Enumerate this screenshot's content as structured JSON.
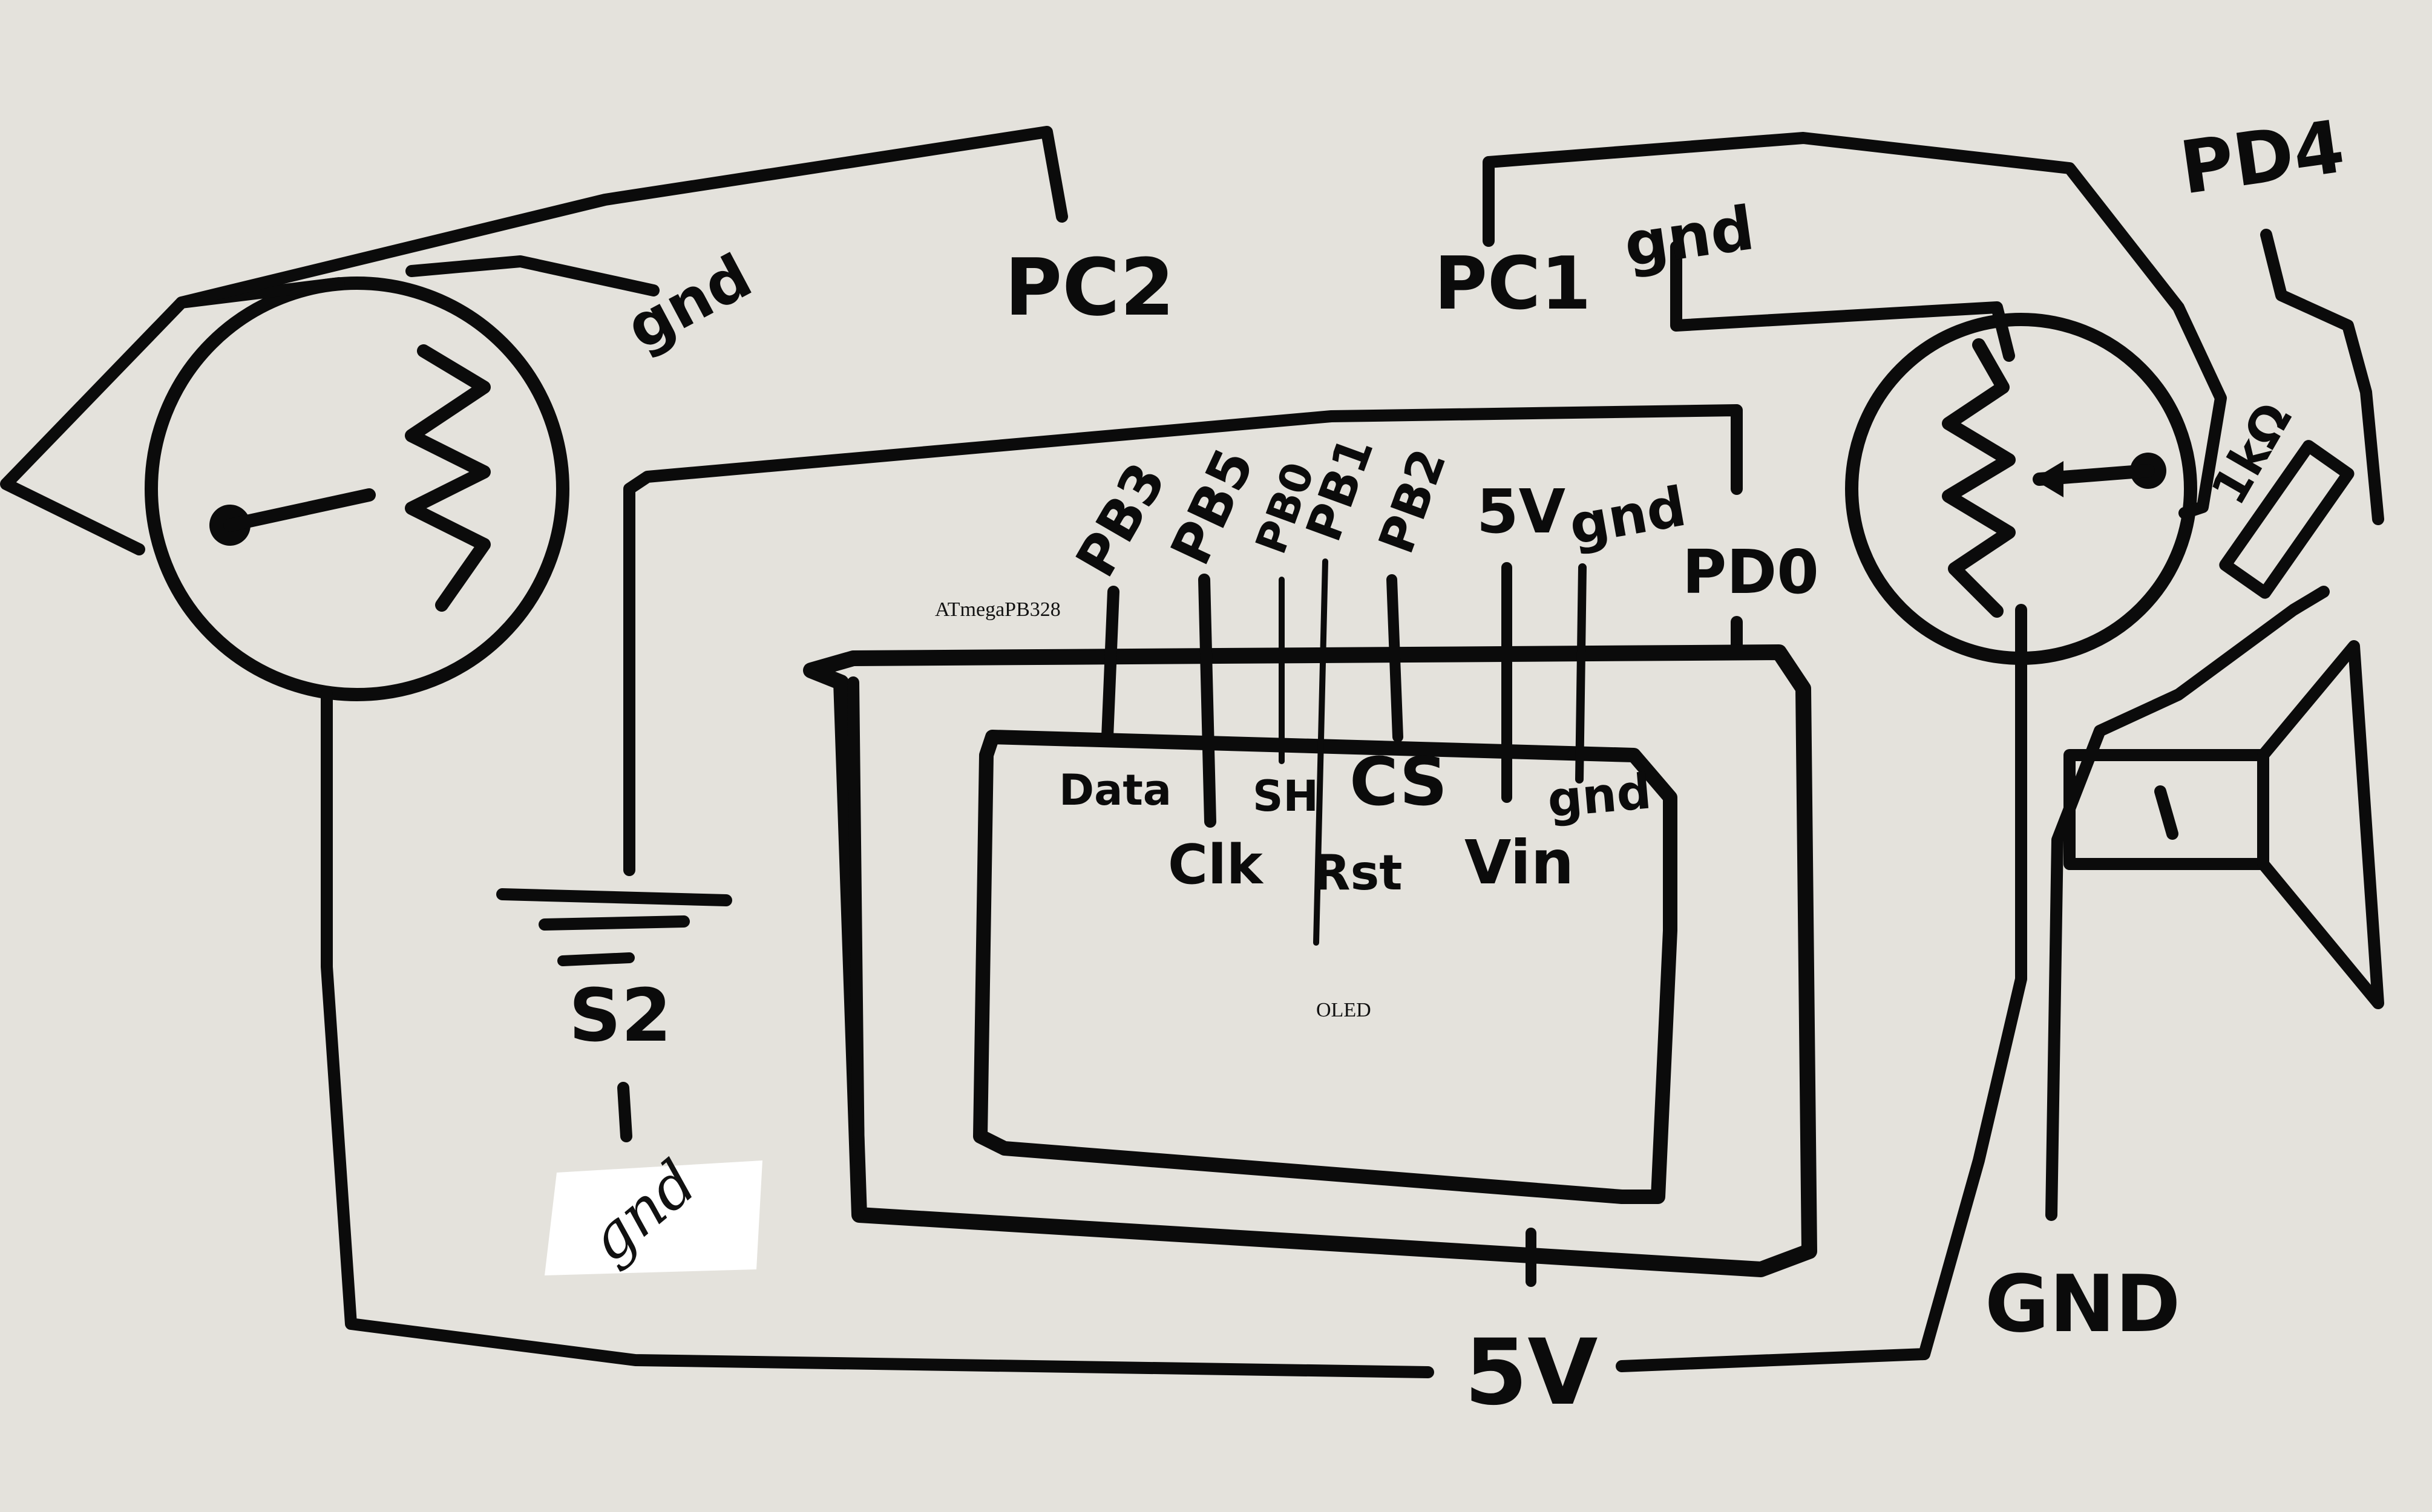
{
  "colors": {
    "board": "#e4e2dc",
    "ink": "#0b0b0b",
    "eraser_patch": "#ffffff"
  },
  "labels": {
    "gnd_left_pot": "gnd",
    "pc2": "PC2",
    "pc1": "PC1",
    "gnd_right_pot": "gnd",
    "pd4": "PD4",
    "resistor_value": "1kΩ",
    "pb3": "PB3",
    "pb5": "PB5",
    "pb0": "PB0",
    "pb1": "PB1",
    "pb2": "PB2",
    "mcu_5v": "5V",
    "mcu_gnd": "gnd",
    "pd0": "PD0",
    "mcu_name": "ATmegaPB328",
    "oled_data": "Data",
    "oled_clk": "Clk",
    "oled_sh": "SH",
    "oled_rst": "Rst",
    "oled_cs": "CS",
    "oled_vin": "Vin",
    "oled_gnd": "gnd",
    "oled_name": "OLED",
    "switch_label": "S2",
    "switch_gnd": "gnd",
    "rail_5v": "5V",
    "rail_gnd": "GND"
  },
  "icons": {
    "left_pot": "potentiometer-icon",
    "right_pot": "potentiometer-icon",
    "speaker": "speaker-icon",
    "resistor": "resistor-icon",
    "switch": "switch-icon"
  }
}
